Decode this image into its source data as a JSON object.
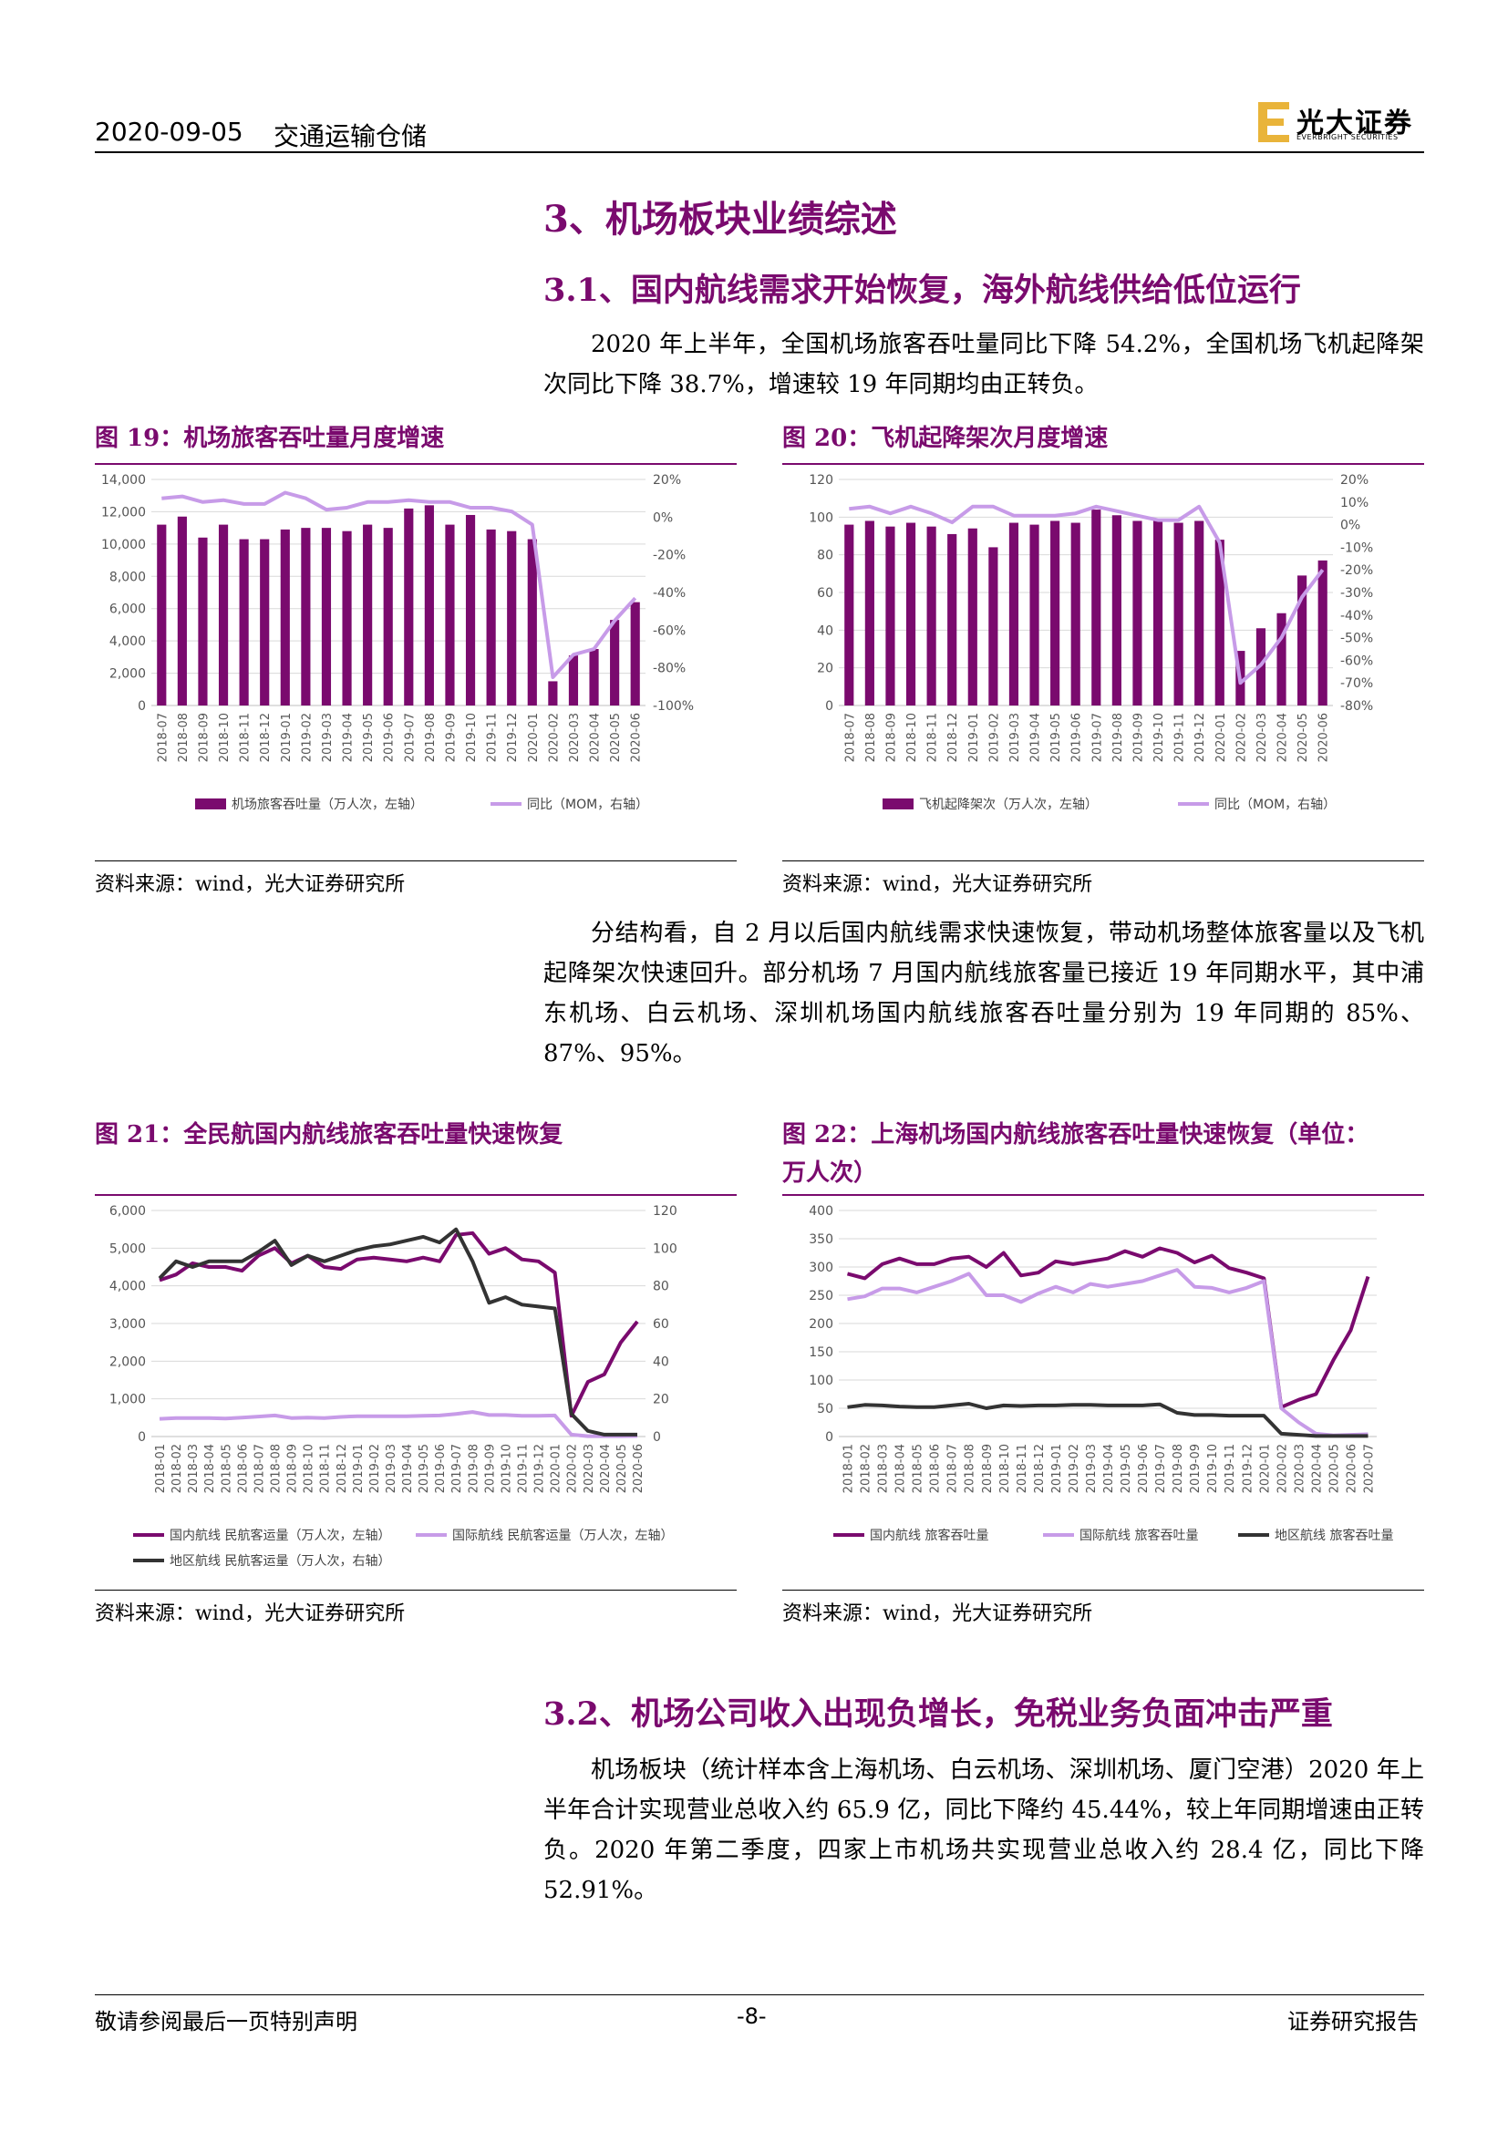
{
  "header": {
    "date": "2020-09-05",
    "category": "交通运输仓储",
    "logo_cn": "光大证券",
    "logo_en": "EVERBRIGHT SECURITIES"
  },
  "section3": {
    "title": "3、机场板块业绩综述",
    "s31_title": "3.1、国内航线需求开始恢复，海外航线供给低位运行",
    "p1": "2020 年上半年，全国机场旅客吞吐量同比下降 54.2%，全国机场飞机起降架次同比下降 38.7%，增速较 19 年同期均由正转负。",
    "p2": "分结构看，自 2 月以后国内航线需求快速恢复，带动机场整体旅客量以及飞机起降架次快速回升。部分机场 7 月国内航线旅客量已接近 19 年同期水平，其中浦东机场、白云机场、深圳机场国内航线旅客吞吐量分别为 19 年同期的 85%、87%、95%。",
    "s32_title": "3.2、机场公司收入出现负增长，免税业务负面冲击严重",
    "p3": "机场板块（统计样本含上海机场、白云机场、深圳机场、厦门空港）2020 年上半年合计实现营业总收入约 65.9 亿，同比下降约 45.44%，较上年同期增速由正转负。2020 年第二季度，四家上市机场共实现营业总收入约 28.4 亿，同比下降 52.91%。"
  },
  "figures": {
    "fig19_title": "图 19：机场旅客吞吐量月度增速",
    "fig20_title": "图 20：飞机起降架次月度增速",
    "fig21_title": "图 21：全民航国内航线旅客吞吐量快速恢复",
    "fig22_title_l1": "图 22：上海机场国内航线旅客吞吐量快速恢复（单位：",
    "fig22_title_l2": "万人次）",
    "source": "资料来源：wind，光大证券研究所"
  },
  "footer": {
    "left": "敬请参阅最后一页特别声明",
    "center": "-8-",
    "right": "证券研究报告"
  },
  "colors": {
    "purple": "#7a0a6e",
    "light_purple": "#c79be8",
    "black": "#333333"
  },
  "chart_data": [
    {
      "type": "bar",
      "id": "fig19",
      "categories": [
        "2018-07",
        "2018-08",
        "2018-09",
        "2018-10",
        "2018-11",
        "2018-12",
        "2019-01",
        "2019-02",
        "2019-03",
        "2019-04",
        "2019-05",
        "2019-06",
        "2019-07",
        "2019-08",
        "2019-09",
        "2019-10",
        "2019-11",
        "2019-12",
        "2020-01",
        "2020-02",
        "2020-03",
        "2020-04",
        "2020-05",
        "2020-06"
      ],
      "series": [
        {
          "name": "机场旅客吞吐量（万人次，左轴）",
          "kind": "bar",
          "axis": "left",
          "values": [
            11200,
            11700,
            10400,
            11200,
            10300,
            10300,
            10900,
            11000,
            11000,
            10800,
            11200,
            11000,
            12200,
            12400,
            11200,
            11800,
            10900,
            10800,
            10300,
            1500,
            3100,
            3500,
            5300,
            6400
          ]
        },
        {
          "name": "同比（MOM，右轴）",
          "kind": "line",
          "axis": "right",
          "values": [
            10,
            11,
            8,
            9,
            7,
            7,
            13,
            10,
            4,
            5,
            8,
            8,
            9,
            8,
            8,
            5,
            5,
            3,
            -4,
            -85,
            -73,
            -70,
            -55,
            -43
          ]
        }
      ],
      "yleft": {
        "min": 0,
        "max": 14000,
        "step": 2000,
        "ticks": [
          "0",
          "2,000",
          "4,000",
          "6,000",
          "8,000",
          "10,000",
          "12,000",
          "14,000"
        ]
      },
      "yright": {
        "min": -100,
        "max": 20,
        "step": 20,
        "ticks": [
          "-100%",
          "-80%",
          "-60%",
          "-40%",
          "-20%",
          "0%",
          "20%"
        ]
      },
      "legend": "bottom"
    },
    {
      "type": "bar",
      "id": "fig20",
      "categories": [
        "2018-07",
        "2018-08",
        "2018-09",
        "2018-10",
        "2018-11",
        "2018-12",
        "2019-01",
        "2019-02",
        "2019-03",
        "2019-04",
        "2019-05",
        "2019-06",
        "2019-07",
        "2019-08",
        "2019-09",
        "2019-10",
        "2019-11",
        "2019-12",
        "2020-01",
        "2020-02",
        "2020-03",
        "2020-04",
        "2020-05",
        "2020-06"
      ],
      "series": [
        {
          "name": "飞机起降架次（万人次，左轴）",
          "kind": "bar",
          "axis": "left",
          "values": [
            96,
            98,
            95,
            97,
            95,
            91,
            94,
            84,
            97,
            96,
            98,
            97,
            104,
            101,
            98,
            98,
            97,
            98,
            88,
            29,
            41,
            49,
            69,
            77
          ]
        },
        {
          "name": "同比（MOM，右轴）",
          "kind": "line",
          "axis": "right",
          "values": [
            7,
            8,
            5,
            8,
            5,
            1,
            8,
            8,
            4,
            4,
            4,
            5,
            8,
            6,
            4,
            2,
            2,
            8,
            -8,
            -70,
            -62,
            -50,
            -32,
            -20
          ]
        }
      ],
      "yleft": {
        "min": 0,
        "max": 120,
        "step": 20,
        "ticks": [
          "0",
          "20",
          "40",
          "60",
          "80",
          "100",
          "120"
        ]
      },
      "yright": {
        "min": -80,
        "max": 20,
        "step": 10,
        "ticks": [
          "-80%",
          "-70%",
          "-60%",
          "-50%",
          "-40%",
          "-30%",
          "-20%",
          "-10%",
          "0%",
          "10%",
          "20%"
        ]
      },
      "legend": "bottom"
    },
    {
      "type": "line",
      "id": "fig21",
      "categories": [
        "2018-01",
        "2018-02",
        "2018-03",
        "2018-04",
        "2018-05",
        "2018-06",
        "2018-07",
        "2018-08",
        "2018-09",
        "2018-10",
        "2018-11",
        "2018-12",
        "2019-01",
        "2019-02",
        "2019-03",
        "2019-04",
        "2019-05",
        "2019-06",
        "2019-07",
        "2019-08",
        "2019-09",
        "2019-10",
        "2019-11",
        "2019-12",
        "2020-01",
        "2020-02",
        "2020-03",
        "2020-04",
        "2020-05",
        "2020-06"
      ],
      "series": [
        {
          "name": "国内航线 民航客运量（万人次，左轴）",
          "axis": "left",
          "color": "#7a0a6e",
          "values": [
            4150,
            4300,
            4600,
            4500,
            4500,
            4400,
            4800,
            5000,
            4600,
            4800,
            4500,
            4450,
            4700,
            4750,
            4700,
            4650,
            4750,
            4650,
            5350,
            5400,
            4850,
            5000,
            4700,
            4650,
            4350,
            550,
            1450,
            1650,
            2500,
            3050
          ]
        },
        {
          "name": "国际航线 民航客运量（万人次，左轴）",
          "axis": "left",
          "color": "#c79be8",
          "values": [
            470,
            490,
            490,
            490,
            480,
            500,
            530,
            560,
            490,
            500,
            490,
            520,
            540,
            540,
            540,
            540,
            550,
            560,
            600,
            650,
            570,
            570,
            550,
            550,
            560,
            50,
            10,
            10,
            10,
            15
          ]
        },
        {
          "name": "地区航线 民航客运量（万人次，右轴）",
          "axis": "right",
          "color": "#333333",
          "values": [
            84,
            93,
            90,
            93,
            93,
            93,
            98,
            104,
            91,
            96,
            93,
            96,
            99,
            101,
            102,
            104,
            106,
            103,
            110,
            93,
            71,
            74,
            70,
            69,
            68,
            12,
            3,
            1,
            1,
            1
          ]
        }
      ],
      "yleft": {
        "min": 0,
        "max": 6000,
        "step": 1000,
        "ticks": [
          "0",
          "1,000",
          "2,000",
          "3,000",
          "4,000",
          "5,000",
          "6,000"
        ]
      },
      "yright": {
        "min": 0,
        "max": 120,
        "step": 20,
        "ticks": [
          "0",
          "20",
          "40",
          "60",
          "80",
          "100",
          "120"
        ]
      },
      "legend": "bottom"
    },
    {
      "type": "line",
      "id": "fig22",
      "categories": [
        "2018-01",
        "2018-02",
        "2018-03",
        "2018-04",
        "2018-05",
        "2018-06",
        "2018-07",
        "2018-08",
        "2018-09",
        "2018-10",
        "2018-11",
        "2018-12",
        "2019-01",
        "2019-02",
        "2019-03",
        "2019-04",
        "2019-05",
        "2019-06",
        "2019-07",
        "2019-08",
        "2019-09",
        "2019-10",
        "2019-11",
        "2019-12",
        "2020-01",
        "2020-02",
        "2020-03",
        "2020-04",
        "2020-05",
        "2020-06",
        "2020-07"
      ],
      "series": [
        {
          "name": "国内航线 旅客吞吐量",
          "color": "#7a0a6e",
          "values": [
            288,
            280,
            305,
            315,
            305,
            305,
            315,
            318,
            300,
            325,
            285,
            290,
            310,
            305,
            310,
            315,
            328,
            318,
            333,
            325,
            308,
            320,
            298,
            290,
            280,
            52,
            65,
            75,
            135,
            188,
            283
          ]
        },
        {
          "name": "国际航线 旅客吞吐量",
          "color": "#c79be8",
          "values": [
            243,
            248,
            262,
            262,
            255,
            265,
            275,
            288,
            250,
            250,
            238,
            253,
            265,
            255,
            270,
            265,
            270,
            275,
            285,
            295,
            265,
            263,
            255,
            263,
            275,
            50,
            25,
            5,
            2,
            3,
            4
          ]
        },
        {
          "name": "地区航线 旅客吞吐量",
          "color": "#333333",
          "values": [
            52,
            56,
            55,
            53,
            52,
            52,
            55,
            58,
            50,
            55,
            54,
            55,
            55,
            56,
            56,
            55,
            55,
            55,
            57,
            42,
            38,
            38,
            37,
            37,
            37,
            5,
            3,
            1,
            1,
            1,
            1
          ]
        }
      ],
      "yleft": {
        "min": 0,
        "max": 400,
        "step": 50,
        "ticks": [
          "0",
          "50",
          "100",
          "150",
          "200",
          "250",
          "300",
          "350",
          "400"
        ]
      },
      "legend": "bottom"
    }
  ]
}
